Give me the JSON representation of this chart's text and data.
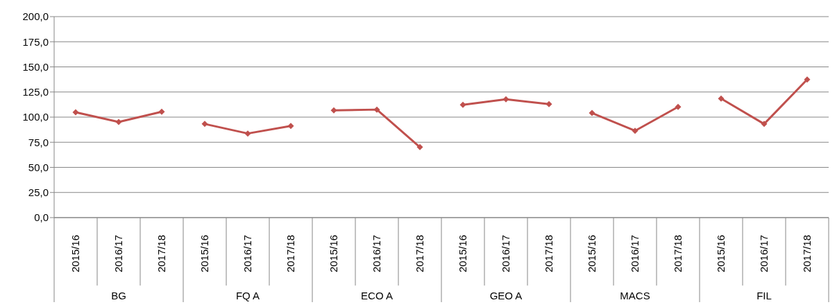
{
  "chart_data": {
    "type": "line",
    "categories": [
      "2015/16",
      "2016/17",
      "2017/18",
      "2015/16",
      "2016/17",
      "2017/18",
      "2015/16",
      "2016/17",
      "2017/18",
      "2015/16",
      "2016/17",
      "2017/18",
      "2015/16",
      "2016/17",
      "2017/18",
      "2015/16",
      "2016/17",
      "2017/18"
    ],
    "annotations": [
      "BG",
      "FQ A",
      "ECO A",
      "GEO A",
      "MACS",
      "FIL"
    ],
    "series": [
      {
        "color": "#c0504d",
        "values": [
          104.8,
          95.2,
          105.4,
          null,
          null,
          null,
          null,
          null,
          null,
          null,
          null,
          null,
          null,
          null,
          null,
          null,
          null,
          null
        ]
      },
      {
        "color": "#c0504d",
        "values": [
          null,
          null,
          null,
          93.2,
          83.7,
          91.2,
          null,
          null,
          null,
          null,
          null,
          null,
          null,
          null,
          null,
          null,
          null,
          null
        ]
      },
      {
        "color": "#c0504d",
        "values": [
          null,
          null,
          null,
          null,
          null,
          null,
          106.8,
          107.5,
          70.1,
          null,
          null,
          null,
          null,
          null,
          null,
          null,
          null,
          null
        ]
      },
      {
        "color": "#c0504d",
        "values": [
          null,
          null,
          null,
          null,
          null,
          null,
          null,
          null,
          null,
          112.2,
          117.7,
          112.9,
          null,
          null,
          null,
          null,
          null,
          null
        ]
      },
      {
        "color": "#c0504d",
        "values": [
          null,
          null,
          null,
          null,
          null,
          null,
          null,
          null,
          null,
          null,
          null,
          null,
          104.1,
          86.4,
          110.2,
          null,
          null,
          null
        ]
      },
      {
        "color": "#c0504d",
        "values": [
          null,
          null,
          null,
          null,
          null,
          null,
          null,
          null,
          null,
          null,
          null,
          null,
          null,
          null,
          null,
          118.4,
          93.2,
          137.4
        ]
      }
    ],
    "ylim": [
      0,
      200
    ],
    "yticks": [
      {
        "value": 0,
        "label": "0,0"
      },
      {
        "value": 25,
        "label": "25,0"
      },
      {
        "value": 50,
        "label": "50,0"
      },
      {
        "value": 75,
        "label": "75,0"
      },
      {
        "value": 100,
        "label": "100,0"
      },
      {
        "value": 125,
        "label": "125,0"
      },
      {
        "value": 150,
        "label": "150,0"
      },
      {
        "value": 175,
        "label": "175,0"
      },
      {
        "value": 200,
        "label": "200,0"
      }
    ],
    "grid": "y",
    "marker": "diamond",
    "line_style": "solid",
    "legend": false
  }
}
